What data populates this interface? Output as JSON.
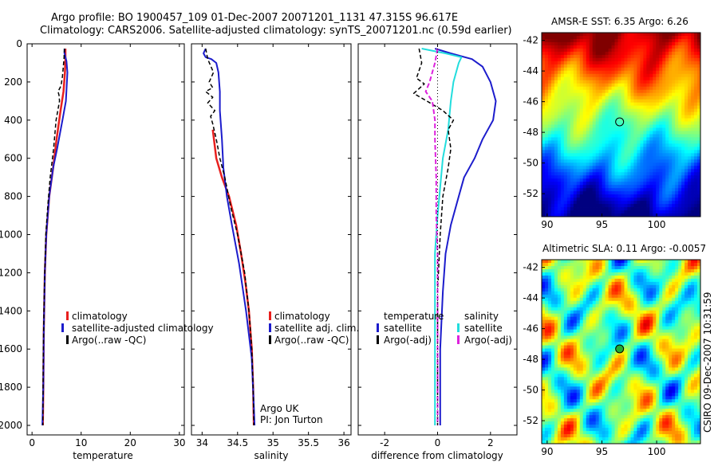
{
  "header": {
    "line1": "Argo profile: BO 1900457_109 01-Dec-2007 20071201_1131 47.315S 96.617E",
    "line2": "Climatology: CARS2006. Satellite-adjusted climatology: synTS_20071201.nc (0.59d earlier)"
  },
  "side_text": "CSIRO 09-Dec-2007 10:31:59",
  "credit": {
    "line1": "Argo UK",
    "line2": "PI: Jon Turton"
  },
  "colors": {
    "red": "#e8201e",
    "blue": "#1c1ccc",
    "black": "#000000",
    "cyan": "#22dddd",
    "magenta": "#dd22dd"
  },
  "chart_data": [
    {
      "type": "line",
      "xlabel": "temperature",
      "ylim": [
        0,
        2050
      ],
      "xlim": [
        -1,
        31
      ],
      "y_ticks": [
        "0",
        "200",
        "400",
        "600",
        "800",
        "1000",
        "1200",
        "1400",
        "1600",
        "1800",
        "2000"
      ],
      "x_ticks": [
        "0",
        "10",
        "20",
        "30"
      ],
      "legend": [
        "climatology",
        "satellite-adjusted climatology",
        "Argo(..raw -QC)"
      ],
      "series": [
        {
          "color": "red",
          "width": 2.5,
          "points": [
            [
              6.8,
              25
            ],
            [
              6.8,
              80
            ],
            [
              6.7,
              150
            ],
            [
              6.4,
              250
            ],
            [
              5.8,
              350
            ],
            [
              5.0,
              500
            ],
            [
              4.3,
              650
            ],
            [
              3.5,
              800
            ],
            [
              2.9,
              1000
            ],
            [
              2.6,
              1200
            ],
            [
              2.4,
              1500
            ],
            [
              2.3,
              1800
            ],
            [
              2.2,
              2000
            ]
          ]
        },
        {
          "color": "blue",
          "width": 2,
          "points": [
            [
              6.6,
              25
            ],
            [
              6.6,
              50
            ],
            [
              7.0,
              90
            ],
            [
              7.2,
              150
            ],
            [
              6.9,
              300
            ],
            [
              6.2,
              400
            ],
            [
              5.1,
              550
            ],
            [
              4.3,
              650
            ],
            [
              3.5,
              800
            ],
            [
              2.9,
              1000
            ],
            [
              2.6,
              1200
            ],
            [
              2.4,
              1500
            ],
            [
              2.3,
              1800
            ],
            [
              2.1,
              2000
            ]
          ]
        },
        {
          "color": "black",
          "width": 1.5,
          "dash": "5,3",
          "points": [
            [
              6.6,
              25
            ],
            [
              6.5,
              80
            ],
            [
              6.2,
              170
            ],
            [
              5.9,
              220
            ],
            [
              5.3,
              250
            ],
            [
              5.5,
              270
            ],
            [
              5.6,
              300
            ],
            [
              4.9,
              400
            ],
            [
              4.4,
              550
            ],
            [
              3.7,
              700
            ],
            [
              3.2,
              850
            ],
            [
              2.8,
              1000
            ],
            [
              2.5,
              1300
            ],
            [
              2.3,
              1600
            ],
            [
              2.2,
              2000
            ]
          ]
        }
      ]
    },
    {
      "type": "line",
      "xlabel": "salinity",
      "ylim": [
        0,
        2050
      ],
      "xlim": [
        33.85,
        36.1
      ],
      "x_ticks": [
        "34",
        "34.5",
        "35",
        "35.5",
        "36"
      ],
      "legend": [
        "climatology",
        "satellite adj. clim.",
        "Argo(..raw -QC)"
      ],
      "series": [
        {
          "color": "red",
          "width": 2.5,
          "points": [
            [
              34.15,
              450
            ],
            [
              34.2,
              600
            ],
            [
              34.28,
              700
            ],
            [
              34.38,
              800
            ],
            [
              34.48,
              950
            ],
            [
              34.55,
              1100
            ],
            [
              34.61,
              1250
            ],
            [
              34.66,
              1400
            ],
            [
              34.7,
              1600
            ],
            [
              34.72,
              1800
            ],
            [
              34.73,
              2000
            ]
          ]
        },
        {
          "color": "blue",
          "width": 2,
          "points": [
            [
              34.05,
              25
            ],
            [
              34.02,
              50
            ],
            [
              34.05,
              70
            ],
            [
              34.13,
              80
            ],
            [
              34.2,
              100
            ],
            [
              34.23,
              150
            ],
            [
              34.25,
              250
            ],
            [
              34.25,
              350
            ],
            [
              34.28,
              500
            ],
            [
              34.3,
              650
            ],
            [
              34.35,
              800
            ],
            [
              34.42,
              950
            ],
            [
              34.52,
              1150
            ],
            [
              34.62,
              1400
            ],
            [
              34.7,
              1650
            ],
            [
              34.73,
              1900
            ],
            [
              34.74,
              2000
            ]
          ]
        },
        {
          "color": "black",
          "width": 1.5,
          "dash": "5,3",
          "points": [
            [
              34.05,
              25
            ],
            [
              34.08,
              80
            ],
            [
              34.16,
              150
            ],
            [
              34.1,
              200
            ],
            [
              34.15,
              230
            ],
            [
              34.05,
              250
            ],
            [
              34.15,
              280
            ],
            [
              34.08,
              310
            ],
            [
              34.18,
              350
            ],
            [
              34.12,
              380
            ],
            [
              34.15,
              420
            ],
            [
              34.2,
              500
            ],
            [
              34.25,
              600
            ],
            [
              34.32,
              700
            ],
            [
              34.4,
              850
            ],
            [
              34.5,
              1000
            ],
            [
              34.6,
              1200
            ],
            [
              34.66,
              1400
            ],
            [
              34.7,
              1600
            ],
            [
              34.72,
              1800
            ],
            [
              34.73,
              2000
            ]
          ]
        }
      ]
    },
    {
      "type": "line",
      "xlabel": "difference from climatology",
      "ylim": [
        0,
        2050
      ],
      "xlim": [
        -3,
        3
      ],
      "x_ticks": [
        "-2",
        "0",
        "2"
      ],
      "legend_title_left": "temperature",
      "legend_title_right": "salinity",
      "legend_left": [
        "satellite",
        "Argo(-adj)"
      ],
      "legend_right": [
        "satellite",
        "Argo(-adj)"
      ],
      "series": [
        {
          "color": "blue",
          "width": 2,
          "points": [
            [
              -0.1,
              25
            ],
            [
              0.5,
              50
            ],
            [
              1.3,
              80
            ],
            [
              1.7,
              120
            ],
            [
              2.0,
              200
            ],
            [
              2.2,
              300
            ],
            [
              2.1,
              400
            ],
            [
              1.7,
              500
            ],
            [
              1.4,
              600
            ],
            [
              1.0,
              700
            ],
            [
              0.8,
              800
            ],
            [
              0.5,
              950
            ],
            [
              0.3,
              1100
            ],
            [
              0.2,
              1300
            ],
            [
              0.1,
              1600
            ],
            [
              0.1,
              2000
            ]
          ]
        },
        {
          "color": "cyan",
          "width": 2,
          "points": [
            [
              -0.6,
              25
            ],
            [
              0.3,
              50
            ],
            [
              0.9,
              70
            ],
            [
              0.8,
              100
            ],
            [
              0.6,
              200
            ],
            [
              0.5,
              300
            ],
            [
              0.4,
              450
            ],
            [
              0.2,
              600
            ],
            [
              0.1,
              750
            ],
            [
              0.0,
              900
            ],
            [
              -0.1,
              1100
            ],
            [
              -0.1,
              1400
            ],
            [
              -0.1,
              1700
            ],
            [
              -0.1,
              2000
            ]
          ]
        },
        {
          "color": "black",
          "width": 1.5,
          "dash": "5,3",
          "points": [
            [
              -0.7,
              25
            ],
            [
              -0.6,
              100
            ],
            [
              -0.8,
              180
            ],
            [
              -0.5,
              210
            ],
            [
              -0.9,
              260
            ],
            [
              -0.4,
              300
            ],
            [
              0.2,
              350
            ],
            [
              0.6,
              400
            ],
            [
              0.4,
              450
            ],
            [
              0.5,
              550
            ],
            [
              0.4,
              650
            ],
            [
              0.2,
              800
            ],
            [
              0.1,
              1000
            ],
            [
              0.0,
              1300
            ],
            [
              0.0,
              1700
            ],
            [
              0.0,
              2000
            ]
          ]
        },
        {
          "color": "magenta",
          "width": 2,
          "dash": "6,3",
          "points": [
            [
              0.0,
              25
            ],
            [
              -0.1,
              100
            ],
            [
              -0.3,
              200
            ],
            [
              -0.45,
              250
            ],
            [
              -0.2,
              300
            ],
            [
              -0.1,
              400
            ],
            [
              -0.1,
              500
            ],
            [
              -0.05,
              700
            ],
            [
              -0.05,
              900
            ],
            [
              0.0,
              1100
            ],
            [
              0.0,
              1500
            ],
            [
              0.0,
              2000
            ]
          ]
        },
        {
          "color": "black",
          "width": 1,
          "dash": "1,3",
          "points": [
            [
              0,
              25
            ],
            [
              0,
              2000
            ]
          ]
        }
      ]
    },
    {
      "type": "heatmap",
      "title": "AMSR-E SST: 6.35 Argo: 6.26",
      "xlim": [
        89.5,
        104
      ],
      "ylim": [
        -53.5,
        -41.5
      ],
      "x_ticks": [
        "90",
        "95",
        "100"
      ],
      "y_ticks": [
        "-42",
        "-44",
        "-46",
        "-48",
        "-50",
        "-52"
      ],
      "marker": {
        "lon": 96.617,
        "lat": -47.315
      }
    },
    {
      "type": "heatmap",
      "title": "Altimetric SLA: 0.11 Argo: -0.0057",
      "xlim": [
        89.5,
        104
      ],
      "ylim": [
        -53.5,
        -41.5
      ],
      "x_ticks": [
        "90",
        "95",
        "100"
      ],
      "y_ticks": [
        "-42",
        "-44",
        "-46",
        "-48",
        "-50",
        "-52"
      ],
      "marker": {
        "lon": 96.617,
        "lat": -47.315
      }
    }
  ]
}
